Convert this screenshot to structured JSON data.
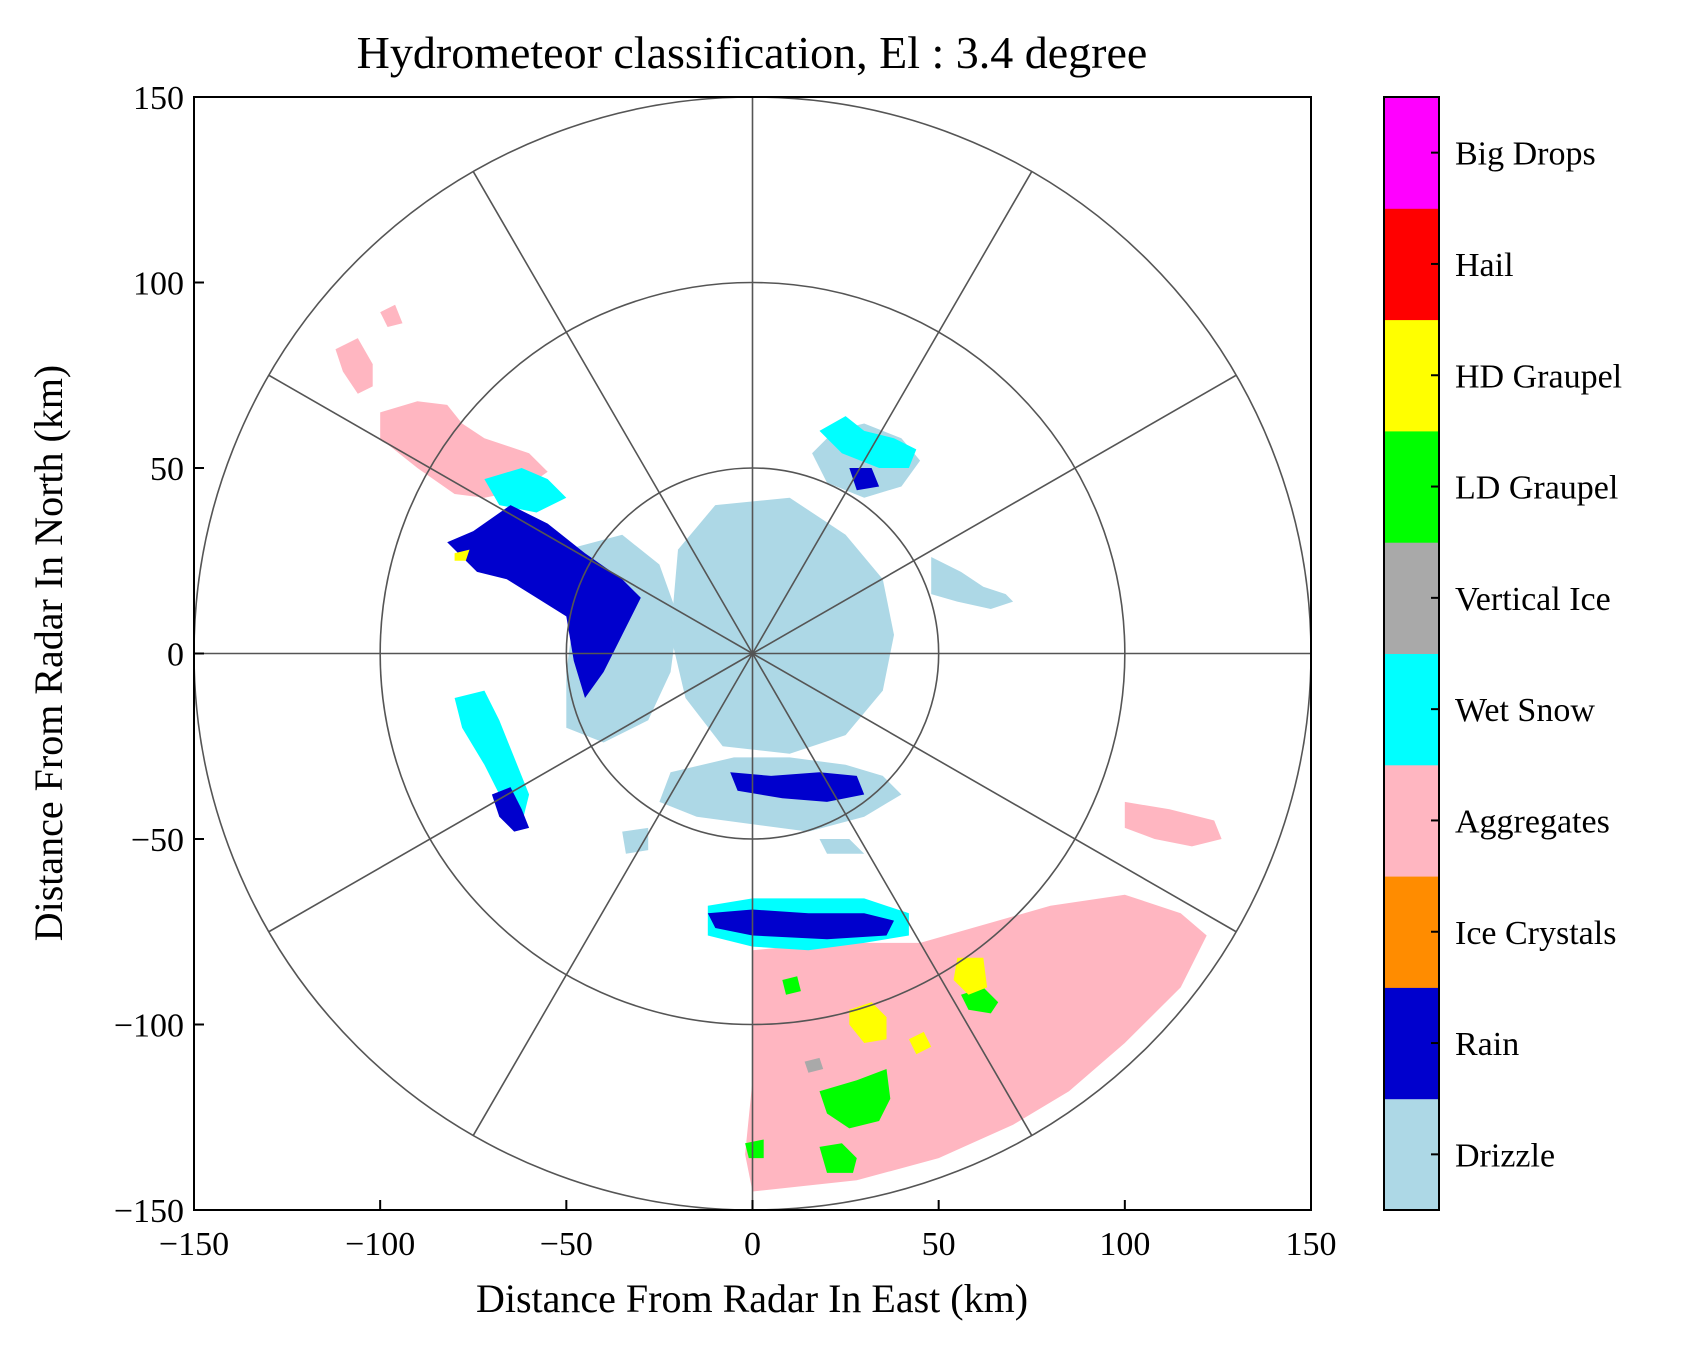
{
  "chart_data": {
    "type": "heatmap",
    "subtype": "radar-ppi-hydrometeor-classification",
    "title": "Hydrometeor classification, El : 3.4 degree",
    "xlabel": "Distance From Radar In East (km)",
    "ylabel": "Distance From Radar In North (km)",
    "xlim": [
      -150,
      150
    ],
    "ylim": [
      -150,
      150
    ],
    "x_ticks": [
      -150,
      -100,
      -50,
      0,
      50,
      100,
      150
    ],
    "y_ticks": [
      -150,
      -100,
      -50,
      0,
      50,
      100,
      150
    ],
    "x_tick_labels": [
      "−150",
      "−100",
      "−50",
      "0",
      "50",
      "100",
      "150"
    ],
    "y_tick_labels": [
      "−150",
      "−100",
      "−50",
      "0",
      "50",
      "100",
      "150"
    ],
    "range_rings_km": [
      50,
      100,
      150
    ],
    "azimuth_spokes_deg": [
      0,
      30,
      60,
      90,
      120,
      150,
      180,
      210,
      240,
      270,
      300,
      330
    ],
    "grid": true,
    "legend": "colorbar-right",
    "classes": [
      {
        "name": "Drizzle",
        "color": "#add8e6"
      },
      {
        "name": "Rain",
        "color": "#0000cd"
      },
      {
        "name": "Ice Crystals",
        "color": "#ff8c00"
      },
      {
        "name": "Aggregates",
        "color": "#ffb6c1"
      },
      {
        "name": "Wet Snow",
        "color": "#00ffff"
      },
      {
        "name": "Vertical Ice",
        "color": "#a9a9a9"
      },
      {
        "name": "LD Graupel",
        "color": "#00ff00"
      },
      {
        "name": "HD Graupel",
        "color": "#ffff00"
      },
      {
        "name": "Hail",
        "color": "#ff0000"
      },
      {
        "name": "Big Drops",
        "color": "#ff00ff"
      }
    ],
    "regions": [
      {
        "class": "Aggregates",
        "polygon": [
          [
            0,
            -80
          ],
          [
            20,
            -78
          ],
          [
            45,
            -78
          ],
          [
            80,
            -68
          ],
          [
            100,
            -65
          ],
          [
            115,
            -70
          ],
          [
            122,
            -76
          ],
          [
            115,
            -90
          ],
          [
            100,
            -105
          ],
          [
            85,
            -118
          ],
          [
            70,
            -127
          ],
          [
            50,
            -136
          ],
          [
            28,
            -142
          ],
          [
            0,
            -145
          ],
          [
            -2,
            -135
          ],
          [
            0,
            -115
          ],
          [
            0,
            -95
          ]
        ]
      },
      {
        "class": "Aggregates",
        "polygon": [
          [
            100,
            -40
          ],
          [
            112,
            -42
          ],
          [
            124,
            -45
          ],
          [
            126,
            -50
          ],
          [
            118,
            -52
          ],
          [
            108,
            -50
          ],
          [
            100,
            -47
          ]
        ]
      },
      {
        "class": "Aggregates",
        "polygon": [
          [
            -100,
            65
          ],
          [
            -90,
            68
          ],
          [
            -82,
            67
          ],
          [
            -78,
            62
          ],
          [
            -72,
            58
          ],
          [
            -66,
            56
          ],
          [
            -60,
            54
          ],
          [
            -55,
            49
          ],
          [
            -62,
            44
          ],
          [
            -72,
            42
          ],
          [
            -80,
            43
          ],
          [
            -90,
            50
          ],
          [
            -100,
            58
          ]
        ]
      },
      {
        "class": "Aggregates",
        "polygon": [
          [
            -112,
            82
          ],
          [
            -106,
            85
          ],
          [
            -102,
            78
          ],
          [
            -102,
            72
          ],
          [
            -106,
            70
          ],
          [
            -110,
            76
          ]
        ]
      },
      {
        "class": "Aggregates",
        "polygon": [
          [
            -100,
            92
          ],
          [
            -96,
            94
          ],
          [
            -94,
            89
          ],
          [
            -98,
            88
          ]
        ]
      },
      {
        "class": "Drizzle",
        "polygon": [
          [
            -50,
            28
          ],
          [
            -35,
            32
          ],
          [
            -25,
            24
          ],
          [
            -20,
            10
          ],
          [
            -22,
            -5
          ],
          [
            -28,
            -18
          ],
          [
            -40,
            -24
          ],
          [
            -50,
            -20
          ],
          [
            -50,
            -5
          ],
          [
            -48,
            10
          ]
        ]
      },
      {
        "class": "Drizzle",
        "polygon": [
          [
            -22,
            -32
          ],
          [
            -5,
            -28
          ],
          [
            10,
            -28
          ],
          [
            25,
            -30
          ],
          [
            35,
            -33
          ],
          [
            40,
            -38
          ],
          [
            30,
            -44
          ],
          [
            15,
            -48
          ],
          [
            0,
            -46
          ],
          [
            -15,
            -44
          ],
          [
            -25,
            -40
          ]
        ]
      },
      {
        "class": "Drizzle",
        "polygon": [
          [
            -20,
            28
          ],
          [
            -10,
            40
          ],
          [
            10,
            42
          ],
          [
            25,
            32
          ],
          [
            35,
            20
          ],
          [
            38,
            5
          ],
          [
            35,
            -10
          ],
          [
            25,
            -22
          ],
          [
            10,
            -27
          ],
          [
            -8,
            -25
          ],
          [
            -18,
            -12
          ],
          [
            -22,
            5
          ]
        ]
      },
      {
        "class": "Drizzle",
        "polygon": [
          [
            16,
            54
          ],
          [
            22,
            60
          ],
          [
            30,
            62
          ],
          [
            40,
            58
          ],
          [
            45,
            52
          ],
          [
            40,
            45
          ],
          [
            30,
            42
          ],
          [
            20,
            46
          ]
        ]
      },
      {
        "class": "Drizzle",
        "polygon": [
          [
            48,
            26
          ],
          [
            56,
            22
          ],
          [
            62,
            18
          ],
          [
            68,
            16
          ],
          [
            70,
            14
          ],
          [
            64,
            12
          ],
          [
            55,
            14
          ],
          [
            48,
            16
          ]
        ]
      },
      {
        "class": "Drizzle",
        "polygon": [
          [
            -35,
            -48
          ],
          [
            -28,
            -47
          ],
          [
            -28,
            -53
          ],
          [
            -34,
            -54
          ]
        ]
      },
      {
        "class": "Drizzle",
        "polygon": [
          [
            18,
            -50
          ],
          [
            26,
            -50
          ],
          [
            30,
            -54
          ],
          [
            20,
            -54
          ]
        ]
      },
      {
        "class": "Wet Snow",
        "polygon": [
          [
            -12,
            -68
          ],
          [
            0,
            -66
          ],
          [
            15,
            -66
          ],
          [
            30,
            -66
          ],
          [
            42,
            -70
          ],
          [
            42,
            -76
          ],
          [
            30,
            -78
          ],
          [
            15,
            -80
          ],
          [
            0,
            -79
          ],
          [
            -12,
            -76
          ]
        ]
      },
      {
        "class": "Wet Snow",
        "polygon": [
          [
            -72,
            47
          ],
          [
            -62,
            50
          ],
          [
            -55,
            47
          ],
          [
            -50,
            42
          ],
          [
            -58,
            38
          ],
          [
            -68,
            40
          ]
        ]
      },
      {
        "class": "Wet Snow",
        "polygon": [
          [
            -80,
            -12
          ],
          [
            -72,
            -10
          ],
          [
            -68,
            -18
          ],
          [
            -64,
            -28
          ],
          [
            -60,
            -38
          ],
          [
            -62,
            -46
          ],
          [
            -66,
            -42
          ],
          [
            -72,
            -30
          ],
          [
            -78,
            -20
          ]
        ]
      },
      {
        "class": "Wet Snow",
        "polygon": [
          [
            18,
            60
          ],
          [
            25,
            64
          ],
          [
            30,
            60
          ],
          [
            38,
            58
          ],
          [
            44,
            55
          ],
          [
            42,
            50
          ],
          [
            34,
            50
          ],
          [
            24,
            54
          ]
        ]
      },
      {
        "class": "Rain",
        "polygon": [
          [
            -82,
            30
          ],
          [
            -75,
            33
          ],
          [
            -65,
            40
          ],
          [
            -55,
            35
          ],
          [
            -45,
            27
          ],
          [
            -35,
            20
          ],
          [
            -30,
            15
          ],
          [
            -35,
            5
          ],
          [
            -40,
            -5
          ],
          [
            -45,
            -12
          ],
          [
            -48,
            -2
          ],
          [
            -50,
            10
          ],
          [
            -58,
            15
          ],
          [
            -66,
            20
          ],
          [
            -74,
            22
          ]
        ]
      },
      {
        "class": "Rain",
        "polygon": [
          [
            -12,
            -70
          ],
          [
            0,
            -69
          ],
          [
            15,
            -70
          ],
          [
            30,
            -70
          ],
          [
            38,
            -72
          ],
          [
            36,
            -76
          ],
          [
            20,
            -77
          ],
          [
            0,
            -76
          ],
          [
            -10,
            -74
          ]
        ]
      },
      {
        "class": "Rain",
        "polygon": [
          [
            -6,
            -32
          ],
          [
            5,
            -33
          ],
          [
            18,
            -32
          ],
          [
            28,
            -33
          ],
          [
            30,
            -38
          ],
          [
            20,
            -40
          ],
          [
            8,
            -39
          ],
          [
            -4,
            -37
          ]
        ]
      },
      {
        "class": "Rain",
        "polygon": [
          [
            -70,
            -38
          ],
          [
            -65,
            -36
          ],
          [
            -62,
            -42
          ],
          [
            -60,
            -47
          ],
          [
            -64,
            -48
          ],
          [
            -68,
            -44
          ]
        ]
      },
      {
        "class": "Rain",
        "polygon": [
          [
            26,
            50
          ],
          [
            32,
            50
          ],
          [
            34,
            45
          ],
          [
            28,
            44
          ]
        ]
      },
      {
        "class": "LD Graupel",
        "polygon": [
          [
            18,
            -118
          ],
          [
            28,
            -115
          ],
          [
            36,
            -112
          ],
          [
            37,
            -120
          ],
          [
            34,
            -126
          ],
          [
            26,
            -128
          ],
          [
            20,
            -124
          ]
        ]
      },
      {
        "class": "LD Graupel",
        "polygon": [
          [
            18,
            -133
          ],
          [
            24,
            -132
          ],
          [
            28,
            -136
          ],
          [
            27,
            -140
          ],
          [
            20,
            -140
          ]
        ]
      },
      {
        "class": "LD Graupel",
        "polygon": [
          [
            56,
            -92
          ],
          [
            62,
            -90
          ],
          [
            66,
            -94
          ],
          [
            64,
            -97
          ],
          [
            58,
            -96
          ]
        ]
      },
      {
        "class": "LD Graupel",
        "polygon": [
          [
            8,
            -88
          ],
          [
            12,
            -87
          ],
          [
            13,
            -91
          ],
          [
            9,
            -92
          ]
        ]
      },
      {
        "class": "LD Graupel",
        "polygon": [
          [
            -2,
            -132
          ],
          [
            3,
            -131
          ],
          [
            3,
            -136
          ],
          [
            -1,
            -136
          ]
        ]
      },
      {
        "class": "HD Graupel",
        "polygon": [
          [
            26,
            -96
          ],
          [
            32,
            -94
          ],
          [
            36,
            -98
          ],
          [
            36,
            -104
          ],
          [
            30,
            -105
          ],
          [
            26,
            -100
          ]
        ]
      },
      {
        "class": "HD Graupel",
        "polygon": [
          [
            42,
            -104
          ],
          [
            46,
            -102
          ],
          [
            48,
            -106
          ],
          [
            44,
            -108
          ]
        ]
      },
      {
        "class": "HD Graupel",
        "polygon": [
          [
            55,
            -82
          ],
          [
            62,
            -82
          ],
          [
            63,
            -90
          ],
          [
            58,
            -92
          ],
          [
            54,
            -88
          ]
        ]
      },
      {
        "class": "HD Graupel",
        "polygon": [
          [
            -80,
            27
          ],
          [
            -76,
            28
          ],
          [
            -77,
            25
          ],
          [
            -80,
            25
          ]
        ]
      },
      {
        "class": "Vertical Ice",
        "polygon": [
          [
            14,
            -110
          ],
          [
            18,
            -109
          ],
          [
            19,
            -112
          ],
          [
            15,
            -113
          ]
        ]
      }
    ]
  }
}
